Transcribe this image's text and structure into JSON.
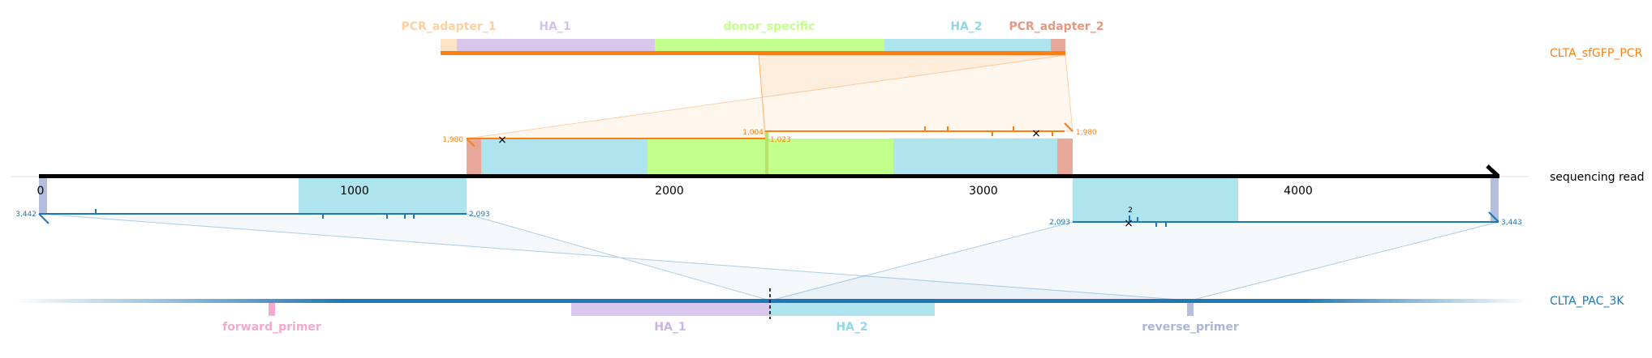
{
  "donor": {
    "name": "CLTA_sfGFP_PCR",
    "color": "#ff7f0e",
    "features": [
      {
        "label": "PCR_adapter_1",
        "color": "#fdd0a2"
      },
      {
        "label": "HA_1",
        "color": "#d4c0ea"
      },
      {
        "label": "donor_specific",
        "color": "#c3ff8b"
      },
      {
        "label": "HA_2",
        "color": "#8fd8e6"
      },
      {
        "label": "PCR_adapter_2",
        "color": "#e59883"
      }
    ]
  },
  "read": {
    "name": "sequencing read",
    "ticks": [
      "0",
      "1000",
      "2000",
      "3000",
      "4000"
    ],
    "upper_labels": {
      "left_end": "1,980",
      "mid_end": "1,004",
      "mid_start": "1,023",
      "right_end": "1,980"
    },
    "lower_labels": {
      "left_start": "3,442",
      "left_end": "2,093",
      "right_start": "2,093",
      "right_end": "3,443",
      "marker": "2"
    }
  },
  "target": {
    "name": "CLTA_PAC_3K",
    "color": "#1f77b4",
    "features": [
      {
        "label": "forward_primer",
        "color": "#f7a8cf"
      },
      {
        "label": "HA_1",
        "color": "#c8b5e4"
      },
      {
        "label": "HA_2",
        "color": "#90d9e8"
      },
      {
        "label": "reverse_primer",
        "color": "#a8b7d6"
      }
    ]
  }
}
